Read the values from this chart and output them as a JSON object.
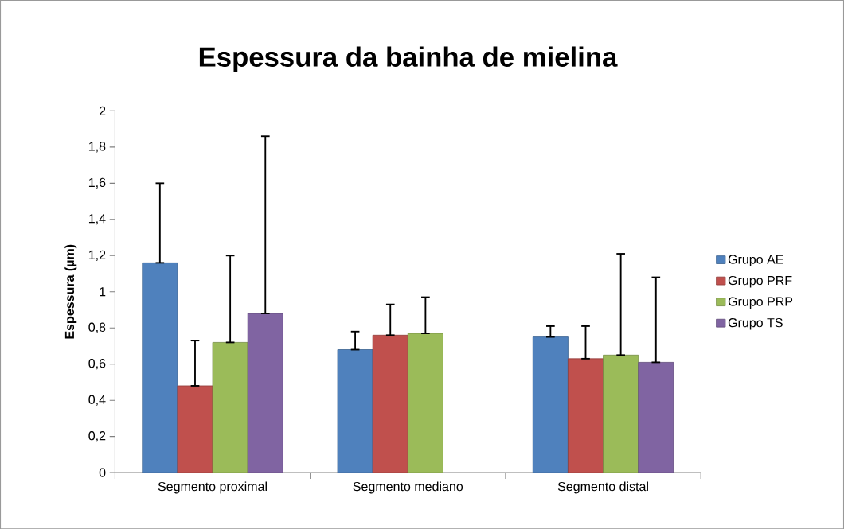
{
  "chart_data": {
    "type": "bar",
    "title": "Espessura da bainha de mielina",
    "ylabel": "Espessura (µm)",
    "categories": [
      "Segmento proximal",
      "Segmento mediano",
      "Segmento distal"
    ],
    "series": [
      {
        "name": "Grupo AE",
        "color": "#4f81bd",
        "values": [
          1.16,
          0.68,
          0.75
        ],
        "errors": [
          [
            1.16,
            1.6
          ],
          [
            0.68,
            0.78
          ],
          [
            0.75,
            0.81
          ]
        ]
      },
      {
        "name": "Grupo PRF",
        "color": "#c0504d",
        "values": [
          0.48,
          0.76,
          0.63
        ],
        "errors": [
          [
            0.48,
            0.73
          ],
          [
            0.76,
            0.93
          ],
          [
            0.63,
            0.81
          ]
        ]
      },
      {
        "name": "Grupo PRP",
        "color": "#9bbb59",
        "values": [
          0.72,
          0.77,
          0.65
        ],
        "errors": [
          [
            0.72,
            1.2
          ],
          [
            0.77,
            0.97
          ],
          [
            0.65,
            1.21
          ]
        ]
      },
      {
        "name": "Grupo TS",
        "color": "#8064a2",
        "values": [
          0.88,
          null,
          0.61
        ],
        "errors": [
          [
            0.88,
            1.86
          ],
          null,
          [
            0.61,
            1.08
          ]
        ]
      }
    ],
    "ylim": [
      0,
      2
    ],
    "yticks": [
      0,
      {
        "value": 0.2,
        "label": "0,2"
      },
      {
        "value": 0.4,
        "label": "0,4"
      },
      {
        "value": 0.6,
        "label": "0,6"
      },
      {
        "value": 0.8,
        "label": "0,8"
      },
      1,
      {
        "value": 1.2,
        "label": "1,2"
      },
      {
        "value": 1.4,
        "label": "1,4"
      },
      {
        "value": 1.6,
        "label": "1,6"
      },
      {
        "value": 1.8,
        "label": "1,8"
      },
      2
    ],
    "legend": "right"
  }
}
